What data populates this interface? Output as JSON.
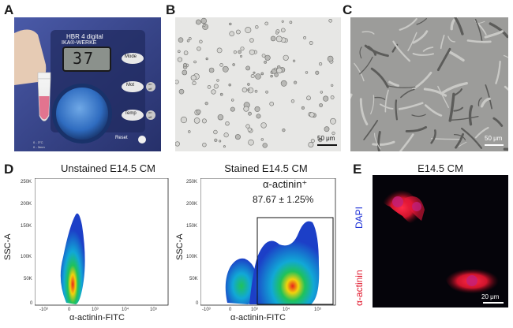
{
  "panels": {
    "A": {
      "letter": "A",
      "device_brand": "HBR 4 digital",
      "device_maker": "IKA®-WERKE",
      "display_value": "37",
      "buttons": [
        "Mode",
        "Mot",
        "Temp",
        "Reset"
      ],
      "button_small": [
        "on",
        "off"
      ],
      "footer_lines": [
        "0 - 3°C",
        "0 - 3mm"
      ]
    },
    "B": {
      "letter": "B",
      "scale_label": "50 μm"
    },
    "C": {
      "letter": "C",
      "scale_label": "50 μm"
    },
    "D": {
      "letter": "D",
      "plots": [
        {
          "title": "Unstained E14.5 CM",
          "ylabel": "SSC-A",
          "xlabel": "α-actinin-FITC",
          "yticks": [
            "250K",
            "200K",
            "150K",
            "100K",
            "50K",
            "0"
          ],
          "xticks": [
            "-10³",
            "0",
            "10³",
            "10⁴",
            "10⁵"
          ]
        },
        {
          "title": "Stained E14.5 CM",
          "ylabel": "SSC-A",
          "xlabel": "α-actinin-FITC",
          "yticks": [
            "250K",
            "200K",
            "150K",
            "100K",
            "50K",
            "0"
          ],
          "xticks": [
            "-10³",
            "0",
            "10³",
            "10⁴",
            "10⁵"
          ],
          "gate_label": "α-actinin⁺",
          "gate_value": "87.67 ± 1.25%"
        }
      ]
    },
    "E": {
      "letter": "E",
      "title": "E14.5 CM",
      "channel_blue": "DAPI",
      "channel_red": "α-actinin",
      "scale_label": "20 μm"
    },
    "colors": {
      "dapi_blue": "#1c2fd6",
      "actinin_red": "#e0152a"
    }
  }
}
